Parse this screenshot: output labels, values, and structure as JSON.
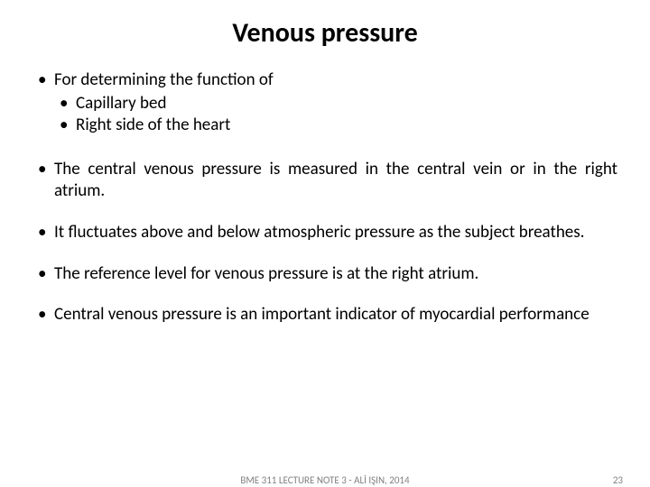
{
  "title": "Venous pressure",
  "bullets": {
    "b1": "For determining the function of",
    "b1a": "Capillary bed",
    "b1b": "Right side of the heart",
    "b2": "The central venous pressure is measured in the central vein or in the right atrium.",
    "b3": "It fluctuates above and below atmospheric pressure as the subject breathes.",
    "b4": "The reference level for venous pressure is at the right atrium.",
    "b5": "Central venous pressure is an important indicator of myocardial performance"
  },
  "footer": {
    "note": "BME 311 LECTURE NOTE 3 - ALİ IŞIN, 2014",
    "page": "23"
  },
  "style": {
    "title_fontsize": 30,
    "body_fontsize": 19,
    "footer_fontsize": 11,
    "text_color": "#000000",
    "footer_color": "#808080",
    "background_color": "#ffffff"
  }
}
